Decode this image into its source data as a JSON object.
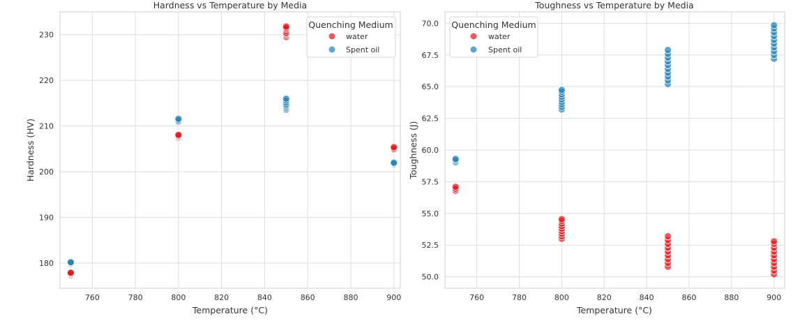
{
  "colors": {
    "water": "#f0141b",
    "spent_oil": "#1f84bd"
  },
  "chart_data": [
    {
      "type": "scatter",
      "title": "Hardness vs Temperature by Media",
      "xlabel": "Temperature (°C)",
      "ylabel": "Hardness (HV)",
      "xlim": [
        745,
        903
      ],
      "ylim": [
        174.5,
        235
      ],
      "xticks": [
        760,
        780,
        800,
        820,
        840,
        860,
        880,
        900
      ],
      "yticks": [
        180,
        190,
        200,
        210,
        220,
        230
      ],
      "ytick_labels": [
        "180",
        "190",
        "200",
        "210",
        "220",
        "230"
      ],
      "grid": true,
      "legend": {
        "title": "Quenching Medium",
        "placement": "top-right",
        "entries": [
          "water",
          "Spent oil"
        ]
      },
      "series": [
        {
          "name": "water",
          "color_key": "water",
          "points": [
            [
              750,
              177.4
            ],
            [
              750,
              177.6
            ],
            [
              750,
              177.8
            ],
            [
              750,
              177.9
            ],
            [
              800,
              207.5
            ],
            [
              800,
              207.7
            ],
            [
              800,
              207.9
            ],
            [
              800,
              208.1
            ],
            [
              850,
              229.5
            ],
            [
              850,
              229.9
            ],
            [
              850,
              230.2
            ],
            [
              850,
              230.4
            ],
            [
              850,
              230.8
            ],
            [
              850,
              231.2
            ],
            [
              850,
              231.5
            ],
            [
              850,
              231.8
            ],
            [
              900,
              204.9
            ],
            [
              900,
              205.1
            ],
            [
              900,
              205.4
            ]
          ]
        },
        {
          "name": "Spent oil",
          "color_key": "spent_oil",
          "points": [
            [
              750,
              179.9
            ],
            [
              750,
              180.1
            ],
            [
              750,
              180.2
            ],
            [
              800,
              211.0
            ],
            [
              800,
              211.3
            ],
            [
              800,
              211.6
            ],
            [
              850,
              213.6
            ],
            [
              850,
              213.9
            ],
            [
              850,
              214.2
            ],
            [
              850,
              214.5
            ],
            [
              850,
              214.8
            ],
            [
              850,
              215.2
            ],
            [
              850,
              215.6
            ],
            [
              850,
              216.0
            ],
            [
              900,
              201.6
            ],
            [
              900,
              201.8
            ],
            [
              900,
              202.0
            ]
          ]
        }
      ]
    },
    {
      "type": "scatter",
      "title": "Toughness vs Temperature by Media",
      "xlabel": "Temperature (°C)",
      "ylabel": "Toughness (J)",
      "xlim": [
        745,
        905
      ],
      "ylim": [
        49.1,
        70.9
      ],
      "xticks": [
        760,
        780,
        800,
        820,
        840,
        860,
        880,
        900
      ],
      "yticks": [
        50.0,
        52.5,
        55.0,
        57.5,
        60.0,
        62.5,
        65.0,
        67.5,
        70.0
      ],
      "ytick_labels": [
        "50.0",
        "52.5",
        "55.0",
        "57.5",
        "60.0",
        "62.5",
        "65.0",
        "67.5",
        "70.0"
      ],
      "grid": true,
      "legend": {
        "title": "Quenching Medium",
        "placement": "top-left",
        "entries": [
          "water",
          "Spent oil"
        ]
      },
      "series": [
        {
          "name": "water",
          "color_key": "water",
          "points": [
            [
              750,
              56.8
            ],
            [
              750,
              56.95
            ],
            [
              750,
              57.1
            ],
            [
              800,
              53.0
            ],
            [
              800,
              53.2
            ],
            [
              800,
              53.4
            ],
            [
              800,
              53.6
            ],
            [
              800,
              53.8
            ],
            [
              800,
              54.0
            ],
            [
              800,
              54.2
            ],
            [
              800,
              54.4
            ],
            [
              800,
              54.55
            ],
            [
              850,
              50.8
            ],
            [
              850,
              51.1
            ],
            [
              850,
              51.4
            ],
            [
              850,
              51.7
            ],
            [
              850,
              52.0
            ],
            [
              850,
              52.3
            ],
            [
              850,
              52.6
            ],
            [
              850,
              52.9
            ],
            [
              850,
              53.2
            ],
            [
              900,
              50.2
            ],
            [
              900,
              50.5
            ],
            [
              900,
              50.8
            ],
            [
              900,
              51.1
            ],
            [
              900,
              51.4
            ],
            [
              900,
              51.7
            ],
            [
              900,
              52.0
            ],
            [
              900,
              52.3
            ],
            [
              900,
              52.6
            ],
            [
              900,
              52.8
            ]
          ]
        },
        {
          "name": "Spent oil",
          "color_key": "spent_oil",
          "points": [
            [
              750,
              59.05
            ],
            [
              750,
              59.2
            ],
            [
              750,
              59.3
            ],
            [
              800,
              63.2
            ],
            [
              800,
              63.4
            ],
            [
              800,
              63.6
            ],
            [
              800,
              63.8
            ],
            [
              800,
              64.0
            ],
            [
              800,
              64.2
            ],
            [
              800,
              64.4
            ],
            [
              800,
              64.6
            ],
            [
              800,
              64.75
            ],
            [
              850,
              65.2
            ],
            [
              850,
              65.5
            ],
            [
              850,
              65.8
            ],
            [
              850,
              66.1
            ],
            [
              850,
              66.4
            ],
            [
              850,
              66.7
            ],
            [
              850,
              67.0
            ],
            [
              850,
              67.3
            ],
            [
              850,
              67.6
            ],
            [
              850,
              67.9
            ],
            [
              900,
              67.2
            ],
            [
              900,
              67.5
            ],
            [
              900,
              67.8
            ],
            [
              900,
              68.1
            ],
            [
              900,
              68.4
            ],
            [
              900,
              68.7
            ],
            [
              900,
              69.0
            ],
            [
              900,
              69.3
            ],
            [
              900,
              69.6
            ],
            [
              900,
              69.85
            ]
          ]
        }
      ]
    }
  ]
}
